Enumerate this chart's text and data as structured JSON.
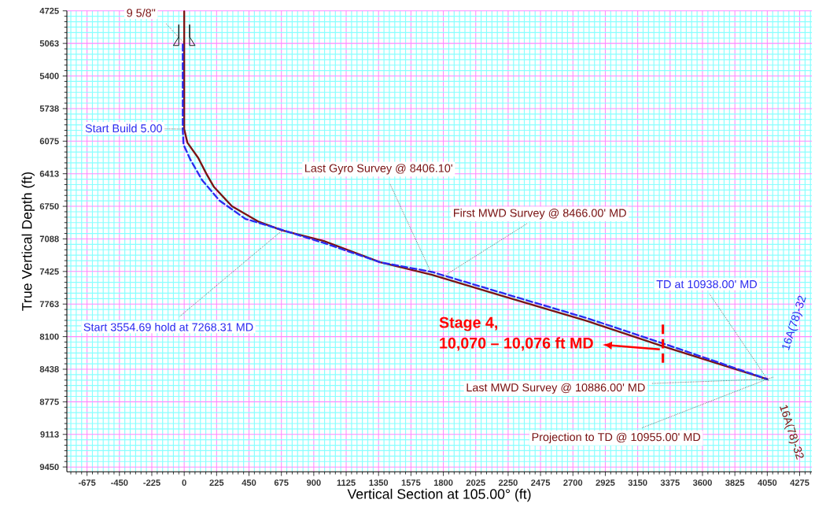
{
  "chart_data": {
    "type": "line",
    "xlabel": "Vertical Section at 105.00° (ft)",
    "ylabel": "True Vertical Depth (ft)",
    "xlim": [
      -815,
      4360
    ],
    "ylim": [
      9500,
      4725
    ],
    "xticks": [
      {
        "value": -787.5,
        "label": null
      },
      {
        "value": -750,
        "label": null
      },
      {
        "value": -712.5,
        "label": null
      },
      -675,
      {
        "value": -637.5,
        "label": null
      },
      {
        "value": -600,
        "label": null
      },
      {
        "value": -562.5,
        "label": null
      },
      {
        "value": -525,
        "label": null
      },
      {
        "value": -487.5,
        "label": null
      },
      -450,
      {
        "value": -412.5,
        "label": null
      },
      {
        "value": -375,
        "label": null
      },
      {
        "value": -337.5,
        "label": null
      },
      {
        "value": -300,
        "label": null
      },
      {
        "value": -262.5,
        "label": null
      },
      -225,
      {
        "value": -187.5,
        "label": null
      },
      {
        "value": -150,
        "label": null
      },
      {
        "value": -112.5,
        "label": null
      },
      {
        "value": -75,
        "label": null
      },
      {
        "value": -37.5,
        "label": null
      },
      0,
      {
        "value": 37.5,
        "label": null
      },
      {
        "value": 75,
        "label": null
      },
      {
        "value": 112.5,
        "label": null
      },
      {
        "value": 150,
        "label": null
      },
      {
        "value": 187.5,
        "label": null
      },
      225,
      {
        "value": 262.5,
        "label": null
      },
      {
        "value": 300,
        "label": null
      },
      {
        "value": 337.5,
        "label": null
      },
      {
        "value": 375,
        "label": null
      },
      {
        "value": 412.5,
        "label": null
      },
      450,
      {
        "value": 487.5,
        "label": null
      },
      {
        "value": 525,
        "label": null
      },
      {
        "value": 562.5,
        "label": null
      },
      {
        "value": 600,
        "label": null
      },
      {
        "value": 637.5,
        "label": null
      },
      675,
      {
        "value": 712.5,
        "label": null
      },
      {
        "value": 750,
        "label": null
      },
      {
        "value": 787.5,
        "label": null
      },
      {
        "value": 825,
        "label": null
      },
      {
        "value": 862.5,
        "label": null
      },
      900,
      {
        "value": 937.5,
        "label": null
      },
      {
        "value": 975,
        "label": null
      },
      {
        "value": 1012.5,
        "label": null
      },
      {
        "value": 1050,
        "label": null
      },
      {
        "value": 1087.5,
        "label": null
      },
      1125,
      {
        "value": 1162.5,
        "label": null
      },
      {
        "value": 1200,
        "label": null
      },
      {
        "value": 1237.5,
        "label": null
      },
      {
        "value": 1275,
        "label": null
      },
      {
        "value": 1312.5,
        "label": null
      },
      1350,
      {
        "value": 1387.5,
        "label": null
      },
      {
        "value": 1425,
        "label": null
      },
      {
        "value": 1462.5,
        "label": null
      },
      {
        "value": 1500,
        "label": null
      },
      {
        "value": 1537.5,
        "label": null
      },
      1575,
      {
        "value": 1612.5,
        "label": null
      },
      {
        "value": 1650,
        "label": null
      },
      {
        "value": 1687.5,
        "label": null
      },
      {
        "value": 1725,
        "label": null
      },
      {
        "value": 1762.5,
        "label": null
      },
      1800,
      {
        "value": 1837.5,
        "label": null
      },
      {
        "value": 1875,
        "label": null
      },
      {
        "value": 1912.5,
        "label": null
      },
      {
        "value": 1950,
        "label": null
      },
      {
        "value": 1987.5,
        "label": null
      },
      2025,
      {
        "value": 2062.5,
        "label": null
      },
      {
        "value": 2100,
        "label": null
      },
      {
        "value": 2137.5,
        "label": null
      },
      {
        "value": 2175,
        "label": null
      },
      {
        "value": 2212.5,
        "label": null
      },
      2250,
      {
        "value": 2287.5,
        "label": null
      },
      {
        "value": 2325,
        "label": null
      },
      {
        "value": 2362.5,
        "label": null
      },
      {
        "value": 2400,
        "label": null
      },
      {
        "value": 2437.5,
        "label": null
      },
      2475,
      {
        "value": 2512.5,
        "label": null
      },
      {
        "value": 2550,
        "label": null
      },
      {
        "value": 2587.5,
        "label": null
      },
      {
        "value": 2625,
        "label": null
      },
      {
        "value": 2662.5,
        "label": null
      },
      2700,
      {
        "value": 2737.5,
        "label": null
      },
      {
        "value": 2775,
        "label": null
      },
      {
        "value": 2812.5,
        "label": null
      },
      {
        "value": 2850,
        "label": null
      },
      {
        "value": 2887.5,
        "label": null
      },
      2925,
      {
        "value": 2962.5,
        "label": null
      },
      {
        "value": 3000,
        "label": null
      },
      {
        "value": 3037.5,
        "label": null
      },
      {
        "value": 3075,
        "label": null
      },
      {
        "value": 3112.5,
        "label": null
      },
      3150,
      {
        "value": 3187.5,
        "label": null
      },
      {
        "value": 3225,
        "label": null
      },
      {
        "value": 3262.5,
        "label": null
      },
      {
        "value": 3300,
        "label": null
      },
      {
        "value": 3337.5,
        "label": null
      },
      3375,
      {
        "value": 3412.5,
        "label": null
      },
      {
        "value": 3450,
        "label": null
      },
      {
        "value": 3487.5,
        "label": null
      },
      {
        "value": 3525,
        "label": null
      },
      {
        "value": 3562.5,
        "label": null
      },
      3600,
      {
        "value": 3637.5,
        "label": null
      },
      {
        "value": 3675,
        "label": null
      },
      {
        "value": 3712.5,
        "label": null
      },
      {
        "value": 3750,
        "label": null
      },
      {
        "value": 3787.5,
        "label": null
      },
      3825,
      {
        "value": 3862.5,
        "label": null
      },
      {
        "value": 3900,
        "label": null
      },
      {
        "value": 3937.5,
        "label": null
      },
      {
        "value": 3975,
        "label": null
      },
      {
        "value": 4012.5,
        "label": null
      },
      4050,
      {
        "value": 4087.5,
        "label": null
      },
      {
        "value": 4125,
        "label": null
      },
      {
        "value": 4162.5,
        "label": null
      },
      {
        "value": 4200,
        "label": null
      },
      {
        "value": 4237.5,
        "label": null
      },
      4275,
      {
        "value": 4312.5,
        "label": null
      },
      {
        "value": 4350,
        "label": null
      }
    ],
    "yticks": [
      4725,
      {
        "value": 4781.25,
        "label": null
      },
      {
        "value": 4837.5,
        "label": null
      },
      {
        "value": 4893.75,
        "label": null
      },
      {
        "value": 4950,
        "label": null
      },
      {
        "value": 5006.25,
        "label": null
      },
      {
        "value": 5062.5,
        "label": "5063"
      },
      {
        "value": 5118.75,
        "label": null
      },
      {
        "value": 5175,
        "label": null
      },
      {
        "value": 5231.25,
        "label": null
      },
      {
        "value": 5287.5,
        "label": null
      },
      {
        "value": 5343.75,
        "label": null
      },
      5400,
      {
        "value": 5456.25,
        "label": null
      },
      {
        "value": 5512.5,
        "label": null
      },
      {
        "value": 5568.75,
        "label": null
      },
      {
        "value": 5625,
        "label": null
      },
      {
        "value": 5681.25,
        "label": null
      },
      {
        "value": 5737.5,
        "label": "5738"
      },
      {
        "value": 5793.75,
        "label": null
      },
      {
        "value": 5850,
        "label": null
      },
      {
        "value": 5906.25,
        "label": null
      },
      {
        "value": 5962.5,
        "label": null
      },
      {
        "value": 6018.75,
        "label": null
      },
      6075,
      {
        "value": 6131.25,
        "label": null
      },
      {
        "value": 6187.5,
        "label": null
      },
      {
        "value": 6243.75,
        "label": null
      },
      {
        "value": 6300,
        "label": null
      },
      {
        "value": 6356.25,
        "label": null
      },
      {
        "value": 6412.5,
        "label": "6413"
      },
      {
        "value": 6468.75,
        "label": null
      },
      {
        "value": 6525,
        "label": null
      },
      {
        "value": 6581.25,
        "label": null
      },
      {
        "value": 6637.5,
        "label": null
      },
      {
        "value": 6693.75,
        "label": null
      },
      6750,
      {
        "value": 6806.25,
        "label": null
      },
      {
        "value": 6862.5,
        "label": null
      },
      {
        "value": 6918.75,
        "label": null
      },
      {
        "value": 6975,
        "label": null
      },
      {
        "value": 7031.25,
        "label": null
      },
      {
        "value": 7087.5,
        "label": "7088"
      },
      {
        "value": 7143.75,
        "label": null
      },
      {
        "value": 7200,
        "label": null
      },
      {
        "value": 7256.25,
        "label": null
      },
      {
        "value": 7312.5,
        "label": null
      },
      {
        "value": 7368.75,
        "label": null
      },
      7425,
      {
        "value": 7481.25,
        "label": null
      },
      {
        "value": 7537.5,
        "label": null
      },
      {
        "value": 7593.75,
        "label": null
      },
      {
        "value": 7650,
        "label": null
      },
      {
        "value": 7706.25,
        "label": null
      },
      {
        "value": 7762.5,
        "label": "7763"
      },
      {
        "value": 7818.75,
        "label": null
      },
      {
        "value": 7875,
        "label": null
      },
      {
        "value": 7931.25,
        "label": null
      },
      {
        "value": 7987.5,
        "label": null
      },
      {
        "value": 8043.75,
        "label": null
      },
      8100,
      {
        "value": 8156.25,
        "label": null
      },
      {
        "value": 8212.5,
        "label": null
      },
      {
        "value": 8268.75,
        "label": null
      },
      {
        "value": 8325,
        "label": null
      },
      {
        "value": 8381.25,
        "label": null
      },
      {
        "value": 8437.5,
        "label": "8438"
      },
      {
        "value": 8493.75,
        "label": null
      },
      {
        "value": 8550,
        "label": null
      },
      {
        "value": 8606.25,
        "label": null
      },
      {
        "value": 8662.5,
        "label": null
      },
      {
        "value": 8718.75,
        "label": null
      },
      8775,
      {
        "value": 8831.25,
        "label": null
      },
      {
        "value": 8887.5,
        "label": null
      },
      {
        "value": 8943.75,
        "label": null
      },
      {
        "value": 9000,
        "label": null
      },
      {
        "value": 9056.25,
        "label": null
      },
      {
        "value": 9112.5,
        "label": "9113"
      },
      {
        "value": 9168.75,
        "label": null
      },
      {
        "value": 9225,
        "label": null
      },
      {
        "value": 9281.25,
        "label": null
      },
      {
        "value": 9337.5,
        "label": null
      },
      {
        "value": 9393.75,
        "label": null
      },
      9450
    ],
    "grid": true,
    "marker": "none",
    "series": [
      {
        "name": "16A(78)-32",
        "color": "#2b2bf0",
        "line_style": "dashed",
        "x": [
          -10,
          -10,
          -5,
          44,
          125,
          245,
          425,
          605,
          970,
          1362,
          1722,
          2191,
          2801,
          3325,
          4050
        ],
        "values": [
          5060,
          5950,
          6110,
          6270,
          6480,
          6690,
          6880,
          6960,
          7130,
          7330,
          7430,
          7640,
          7910,
          8170,
          8540
        ]
      },
      {
        "name": "16A(78)-32",
        "color": "#7a1414",
        "line_style": "solid",
        "x": [
          0,
          0,
          22,
          60,
          98,
          153,
          207,
          332,
          518,
          681,
          970,
          1362,
          1722,
          2191,
          2801,
          3325,
          4050
        ],
        "values": [
          4730,
          5950,
          6090,
          6170,
          6250,
          6410,
          6550,
          6750,
          6910,
          7000,
          7110,
          7330,
          7460,
          7670,
          7940,
          8200,
          8540
        ]
      }
    ],
    "annotations": [
      {
        "text": "9 5/8\"",
        "x": 0,
        "y": 5060
      },
      {
        "text": "Start Build 5.00",
        "x": -10,
        "y": 5950
      },
      {
        "text": "Start 3554.69 hold at 7268.31 MD",
        "x": 680,
        "y": 7000
      },
      {
        "text": "Last Gyro Survey @ 8406.10'",
        "x": 1722,
        "y": 7460
      },
      {
        "text": "First MWD Survey @ 8466.00' MD",
        "x": 1780,
        "y": 7495
      },
      {
        "text": "TD at 10938.00' MD",
        "x": 4050,
        "y": 8540
      },
      {
        "text": "Last MWD Survey @ 10886.00' MD",
        "x": 4050,
        "y": 8540
      },
      {
        "text": "Projection to TD @ 10955.00' MD",
        "x": 4050,
        "y": 8540
      },
      {
        "text": "Stage 4,\n10,070 – 10,076 ft MD",
        "x": 3325,
        "y": 8200
      }
    ]
  }
}
